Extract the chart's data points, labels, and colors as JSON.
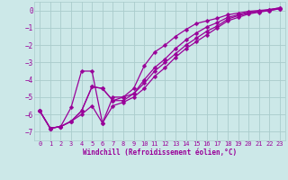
{
  "xlabel": "Windchill (Refroidissement éolien,°C)",
  "bg_color": "#cce8e8",
  "grid_color": "#aacccc",
  "line_color": "#990099",
  "xlim": [
    -0.5,
    23.5
  ],
  "ylim": [
    -7.5,
    0.5
  ],
  "xticks": [
    0,
    1,
    2,
    3,
    4,
    5,
    6,
    7,
    8,
    9,
    10,
    11,
    12,
    13,
    14,
    15,
    16,
    17,
    18,
    19,
    20,
    21,
    22,
    23
  ],
  "yticks": [
    0,
    -1,
    -2,
    -3,
    -4,
    -5,
    -6,
    -7
  ],
  "line1_x": [
    0,
    1,
    2,
    3,
    4,
    5,
    6,
    7,
    8,
    9,
    10,
    11,
    12,
    13,
    14,
    15,
    16,
    17,
    18,
    19,
    20,
    21,
    22,
    23
  ],
  "line1_y": [
    -5.8,
    -6.8,
    -6.7,
    -5.6,
    -3.5,
    -3.5,
    -6.5,
    -5.0,
    -5.0,
    -4.5,
    -3.2,
    -2.4,
    -2.0,
    -1.5,
    -1.1,
    -0.75,
    -0.6,
    -0.45,
    -0.25,
    -0.15,
    -0.05,
    0.0,
    0.05,
    0.15
  ],
  "line2_x": [
    0,
    1,
    2,
    3,
    4,
    5,
    6,
    7,
    8,
    9,
    10,
    11,
    12,
    13,
    14,
    15,
    16,
    17,
    18,
    19,
    20,
    21,
    22,
    23
  ],
  "line2_y": [
    -5.8,
    -6.8,
    -6.7,
    -6.4,
    -5.8,
    -4.4,
    -4.5,
    -5.2,
    -5.0,
    -4.8,
    -4.0,
    -3.3,
    -2.8,
    -2.2,
    -1.7,
    -1.3,
    -0.95,
    -0.7,
    -0.4,
    -0.25,
    -0.1,
    -0.05,
    0.0,
    0.1
  ],
  "line3_x": [
    0,
    1,
    2,
    3,
    4,
    5,
    6,
    7,
    8,
    9,
    10,
    11,
    12,
    13,
    14,
    15,
    16,
    17,
    18,
    19,
    20,
    21,
    22,
    23
  ],
  "line3_y": [
    -5.8,
    -6.8,
    -6.7,
    -6.4,
    -5.8,
    -4.4,
    -4.5,
    -5.2,
    -5.2,
    -4.8,
    -4.2,
    -3.5,
    -3.0,
    -2.5,
    -2.0,
    -1.6,
    -1.2,
    -0.9,
    -0.5,
    -0.3,
    -0.15,
    -0.05,
    0.05,
    0.15
  ],
  "line4_x": [
    0,
    1,
    2,
    3,
    4,
    5,
    6,
    7,
    8,
    9,
    10,
    11,
    12,
    13,
    14,
    15,
    16,
    17,
    18,
    19,
    20,
    21,
    22,
    23
  ],
  "line4_y": [
    -5.8,
    -6.8,
    -6.7,
    -6.4,
    -6.0,
    -5.5,
    -6.5,
    -5.5,
    -5.3,
    -5.0,
    -4.5,
    -3.8,
    -3.3,
    -2.7,
    -2.2,
    -1.8,
    -1.4,
    -1.0,
    -0.6,
    -0.4,
    -0.2,
    -0.1,
    0.0,
    0.1
  ]
}
